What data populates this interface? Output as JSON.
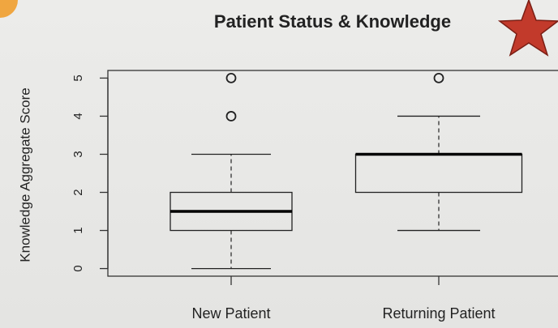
{
  "chart_data": {
    "type": "box",
    "title": "Patient Status & Knowledge",
    "y_label": "Knowledge Aggregate Score",
    "categories": [
      "New Patient",
      "Returning Patient"
    ],
    "boxes": [
      {
        "min": 0,
        "q1": 1,
        "median": 1.5,
        "q3": 2,
        "max": 3,
        "outliers": [
          4,
          5
        ]
      },
      {
        "min": 1,
        "q1": 2,
        "median": 3,
        "q3": 3,
        "max": 4,
        "outliers": [
          5
        ]
      }
    ],
    "color": "#222222",
    "ylim": [
      -0.2,
      5.2
    ],
    "yticks": [
      0,
      1,
      2,
      3,
      4,
      5
    ]
  }
}
